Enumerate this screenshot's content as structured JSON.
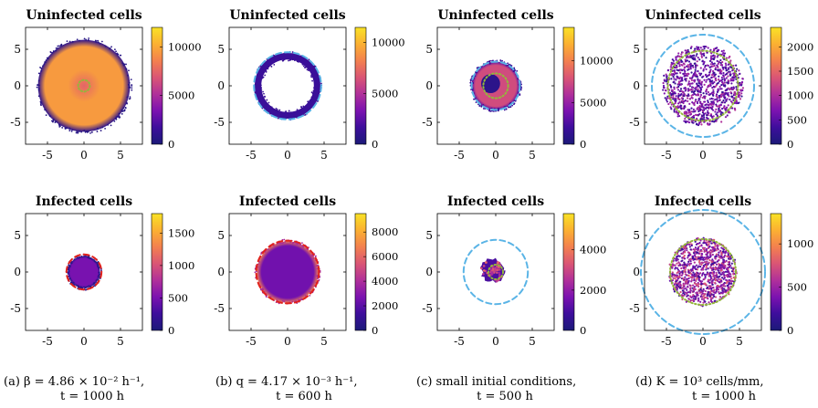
{
  "panels": [
    {
      "id": "a",
      "caption": {
        "line1": "(a) β = 4.86 × 10⁻² h⁻¹,",
        "line2": "t = 1000 h"
      },
      "plots": [
        {
          "title": "Uninfected cells",
          "cbar_ticks": [
            "0",
            "5000",
            "10000"
          ],
          "cbar_max": 12000
        },
        {
          "title": "Infected cells",
          "cbar_ticks": [
            "0",
            "500",
            "1000",
            "1500"
          ],
          "cbar_max": 1800
        }
      ]
    },
    {
      "id": "b",
      "caption": {
        "line1": "(b) q = 4.17 × 10⁻³ h⁻¹,",
        "line2": "t = 600 h"
      },
      "plots": [
        {
          "title": "Uninfected cells",
          "cbar_ticks": [
            "0",
            "5000",
            "10000"
          ],
          "cbar_max": 11500
        },
        {
          "title": "Infected cells",
          "cbar_ticks": [
            "0",
            "2000",
            "4000",
            "6000",
            "8000"
          ],
          "cbar_max": 9500
        }
      ]
    },
    {
      "id": "c",
      "caption": {
        "line1": "(c) small initial conditions,",
        "line2": "t = 500 h"
      },
      "plots": [
        {
          "title": "Uninfected cells",
          "cbar_ticks": [
            "0",
            "5000",
            "10000"
          ],
          "cbar_max": 14000
        },
        {
          "title": "Infected cells",
          "cbar_ticks": [
            "0",
            "2000",
            "4000"
          ],
          "cbar_max": 5800
        }
      ]
    },
    {
      "id": "d",
      "caption": {
        "line1": "(d) K = 10³ cells/mm,",
        "line2": "t = 1000 h"
      },
      "plots": [
        {
          "title": "Uninfected cells",
          "cbar_ticks": [
            "0",
            "500",
            "1000",
            "1500",
            "2000"
          ],
          "cbar_max": 2400
        },
        {
          "title": "Infected cells",
          "cbar_ticks": [
            "0",
            "500",
            "1000"
          ],
          "cbar_max": 1350
        }
      ]
    }
  ],
  "axes": {
    "xticks": [
      "-5",
      "0",
      "5"
    ],
    "yticks": [
      "5",
      "0",
      "-5"
    ]
  },
  "colors": {
    "cmap": [
      "#1b1a78",
      "#3d0e9c",
      "#7b12b0",
      "#b0309a",
      "#da5575",
      "#f3804f",
      "#fbb032",
      "#f9e226"
    ],
    "dashed_blue": "#5ab4e6",
    "dashed_red": "#e0221c",
    "dotted_green": "#93b83a"
  },
  "chart_data": [
    {
      "type": "heatmap",
      "panel": "a",
      "title": "Uninfected cells",
      "xlim": [
        -8,
        8
      ],
      "ylim": [
        -8,
        8
      ],
      "colorbar_range": [
        0,
        12000
      ],
      "colony": {
        "shape": "filled disk",
        "outer_radius": 6.3,
        "edge_value": 1000,
        "interior_value": 9500,
        "core_value": 7500
      },
      "overlays": [
        {
          "style": "dotted",
          "color": "green",
          "radius": 0.8
        }
      ]
    },
    {
      "type": "heatmap",
      "panel": "a",
      "title": "Infected cells",
      "xlim": [
        -8,
        8
      ],
      "ylim": [
        -8,
        8
      ],
      "colorbar_range": [
        0,
        1800
      ],
      "colony": {
        "shape": "filled disk",
        "outer_radius": 2.2,
        "edge_value": 200,
        "interior_value": 500
      },
      "overlays": [
        {
          "style": "dashed",
          "color": "red",
          "radius": 2.4
        }
      ]
    },
    {
      "type": "heatmap",
      "panel": "b",
      "title": "Uninfected cells",
      "xlim": [
        -8,
        8
      ],
      "ylim": [
        -8,
        8
      ],
      "colorbar_range": [
        0,
        11500
      ],
      "colony": {
        "shape": "annulus",
        "outer_radius": 4.5,
        "inner_radius": 3.6,
        "value": 1500
      },
      "overlays": [
        {
          "style": "dashed",
          "color": "blue",
          "radius": 4.6
        }
      ]
    },
    {
      "type": "heatmap",
      "panel": "b",
      "title": "Infected cells",
      "xlim": [
        -8,
        8
      ],
      "ylim": [
        -8,
        8
      ],
      "colorbar_range": [
        0,
        9500
      ],
      "colony": {
        "shape": "filled disk",
        "outer_radius": 4.2,
        "edge_value": 6500,
        "interior_value": 2500
      },
      "overlays": [
        {
          "style": "dashed",
          "color": "red",
          "radius": 4.3
        }
      ]
    },
    {
      "type": "heatmap",
      "panel": "c",
      "title": "Uninfected cells",
      "xlim": [
        -8,
        8
      ],
      "ylim": [
        -8,
        8
      ],
      "colorbar_range": [
        0,
        14000
      ],
      "colony": {
        "shape": "filled disk",
        "outer_radius": 3.3,
        "edge_value": 3000,
        "interior_value": 7500,
        "hole": {
          "cx": -0.7,
          "cy": 0.3,
          "r": 1.3,
          "value": 1000
        }
      },
      "overlays": [
        {
          "style": "dashed",
          "color": "blue",
          "radius": 3.3
        },
        {
          "style": "dotted",
          "color": "green",
          "radius": 1.7
        }
      ]
    },
    {
      "type": "heatmap",
      "panel": "c",
      "title": "Infected cells",
      "xlim": [
        -8,
        8
      ],
      "ylim": [
        -8,
        8
      ],
      "colorbar_range": [
        0,
        5800
      ],
      "colony": {
        "shape": "irregular blob",
        "center": [
          -0.4,
          0.2
        ],
        "outer_radius": 1.6,
        "edge_value": 1500,
        "interior_value": 1000
      },
      "overlays": [
        {
          "style": "dashed",
          "color": "blue",
          "radius": 4.4
        },
        {
          "style": "dotted",
          "color": "green",
          "radius": 1.0
        }
      ]
    },
    {
      "type": "heatmap",
      "panel": "d",
      "title": "Uninfected cells",
      "xlim": [
        -8,
        8
      ],
      "ylim": [
        -8,
        8
      ],
      "colorbar_range": [
        0,
        2400
      ],
      "colony": {
        "shape": "filled disk (noisy)",
        "outer_radius": 5.5,
        "value": 600
      },
      "overlays": [
        {
          "style": "dashed",
          "color": "blue",
          "radius": 7.0
        },
        {
          "style": "dotted",
          "color": "green",
          "radius": 4.8
        }
      ]
    },
    {
      "type": "heatmap",
      "panel": "d",
      "title": "Infected cells",
      "xlim": [
        -8,
        8
      ],
      "ylim": [
        -8,
        8
      ],
      "colorbar_range": [
        0,
        1350
      ],
      "colony": {
        "shape": "filled disk (noisy)",
        "outer_radius": 4.6,
        "value": 450
      },
      "overlays": [
        {
          "style": "dashed",
          "color": "blue",
          "radius": 8.5
        },
        {
          "style": "dotted",
          "color": "green",
          "radius": 4.5
        }
      ]
    }
  ]
}
